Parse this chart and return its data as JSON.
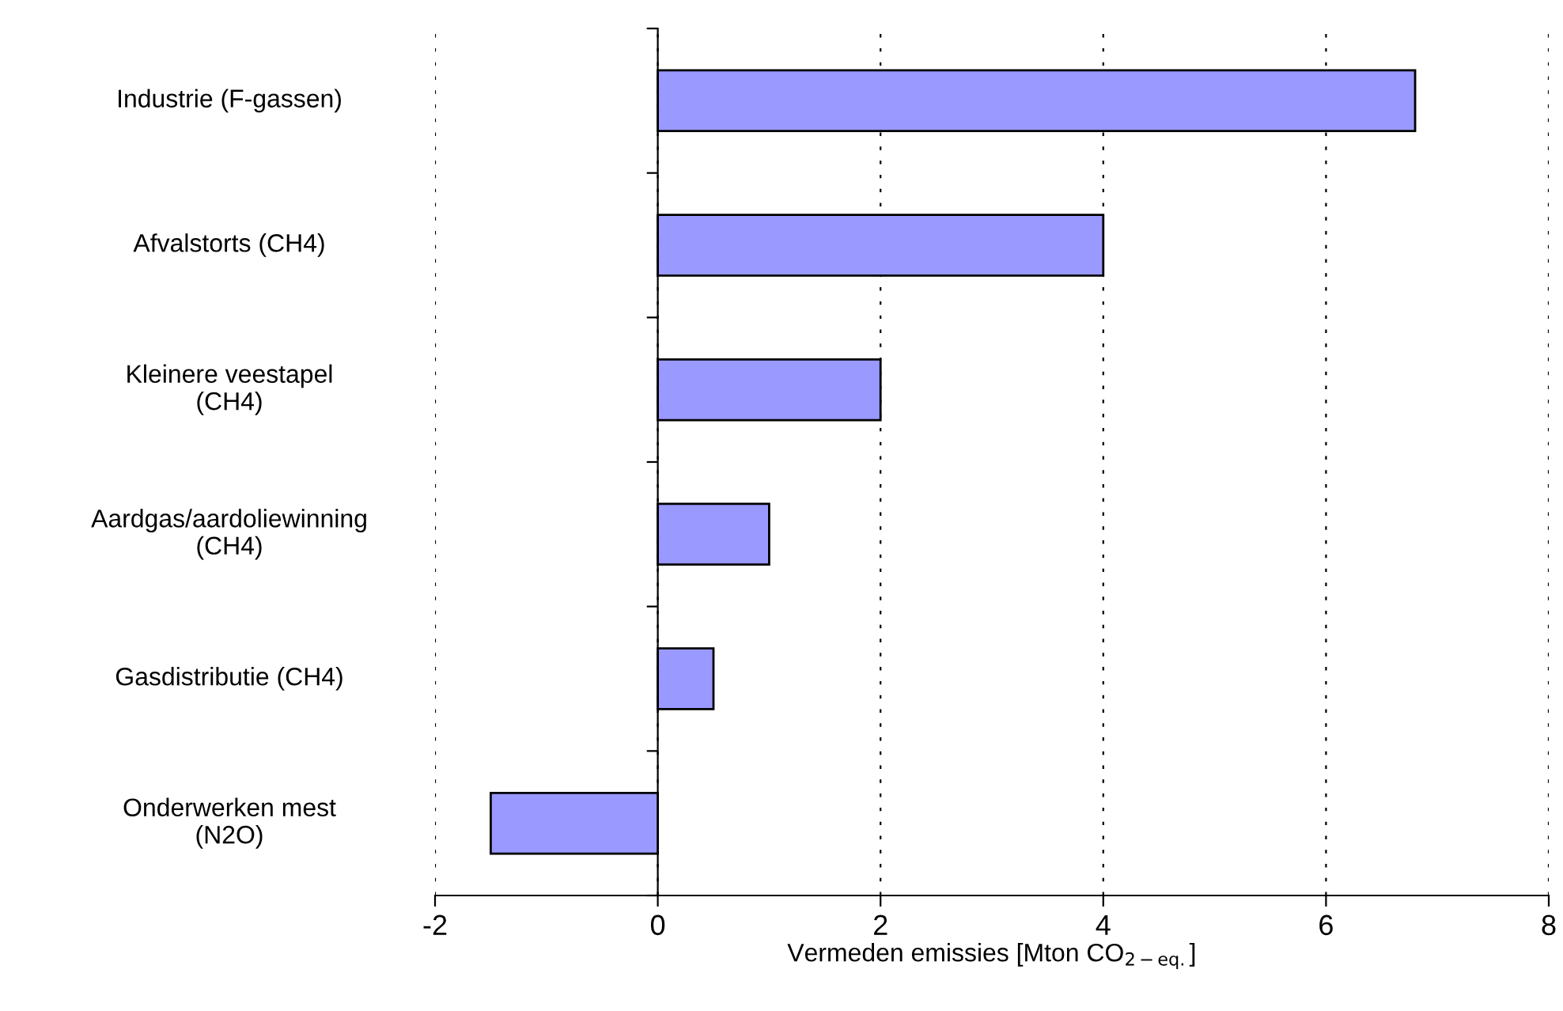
{
  "chart_data": {
    "type": "bar",
    "orientation": "horizontal",
    "xlabel": "Vermeden emissies [Mton CO$_{2−eq.}$]",
    "categories": [
      "Industrie (F-gassen)",
      "Afvalstorts (CH4)",
      "Kleinere veestapel\n(CH4)",
      "Aardgas/aardoliewinning\n(CH4)",
      "Gasdistributie (CH4)",
      "Onderwerken mest\n(N2O)"
    ],
    "values": [
      6.8,
      4.0,
      2.0,
      1.0,
      0.5,
      -1.5
    ],
    "color": "#9999ff",
    "xlim": [
      -2,
      8
    ],
    "xticks": [
      -2,
      0,
      2,
      4,
      6,
      8
    ],
    "grid": "x"
  }
}
